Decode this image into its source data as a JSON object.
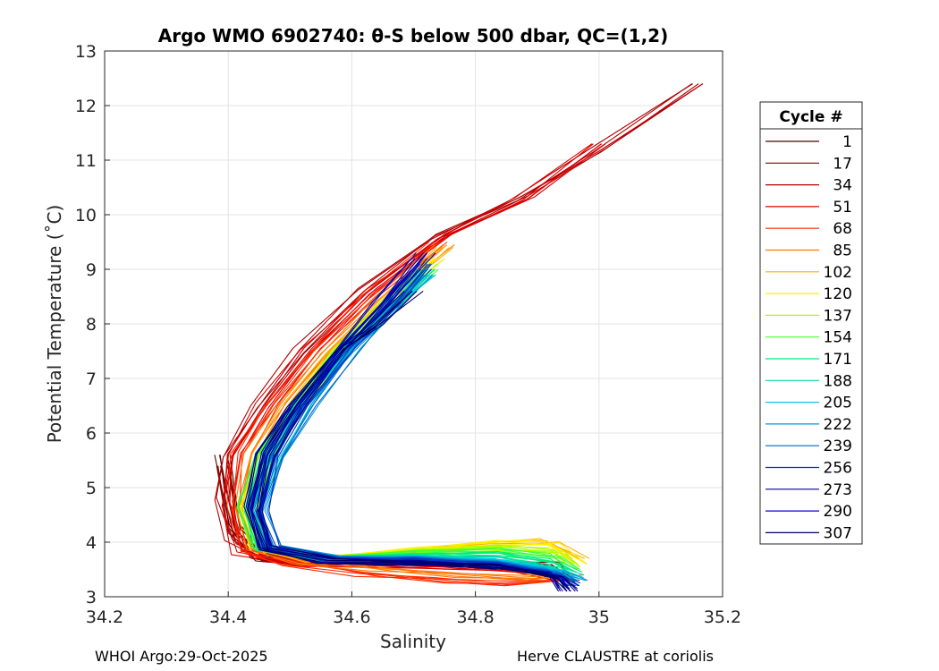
{
  "chart_data": {
    "type": "line",
    "title": "Argo WMO 6902740: θ-S below 500 dbar,  QC=(1,2)",
    "xlabel": "Salinity",
    "ylabel": "Potential Temperature (˚C)",
    "xlim": [
      34.2,
      35.2
    ],
    "ylim": [
      3,
      13
    ],
    "xticks": [
      "34.2",
      "34.4",
      "34.6",
      "34.8",
      "35",
      "35.2"
    ],
    "yticks": [
      "3",
      "4",
      "5",
      "6",
      "7",
      "8",
      "9",
      "10",
      "11",
      "12",
      "13"
    ],
    "grid": true,
    "legend_title": "Cycle #",
    "legend_position": "outside-right",
    "series": [
      {
        "name": "1",
        "color": "#550000",
        "x": [
          34.39,
          34.41,
          34.45,
          34.52,
          34.62,
          34.74,
          34.92,
          34.95
        ],
        "y": [
          5.6,
          4.3,
          3.75,
          3.62,
          3.66,
          3.62,
          3.6,
          3.2
        ]
      },
      {
        "name": "17",
        "color": "#8b0000",
        "x": [
          34.39,
          34.41,
          34.46,
          34.53,
          34.63,
          34.75,
          34.92,
          34.94
        ],
        "y": [
          5.4,
          4.2,
          3.7,
          3.62,
          3.66,
          3.65,
          3.6,
          3.4
        ]
      },
      {
        "name": "34",
        "color": "#b00000",
        "x": [
          35.16,
          35.0,
          34.87,
          34.74,
          34.62,
          34.52,
          34.45,
          34.4,
          34.39,
          34.41,
          34.46,
          34.55,
          34.64,
          34.76,
          34.9,
          34.96
        ],
        "y": [
          12.4,
          11.2,
          10.3,
          9.6,
          8.6,
          7.5,
          6.5,
          5.6,
          4.8,
          4.0,
          3.68,
          3.62,
          3.64,
          3.58,
          3.45,
          3.3
        ]
      },
      {
        "name": "51",
        "color": "#dd0000",
        "x": [
          35.0,
          34.88,
          34.75,
          34.63,
          34.53,
          34.46,
          34.41,
          34.4,
          34.42,
          34.5,
          34.62,
          34.76,
          34.88,
          34.94
        ],
        "y": [
          11.3,
          10.3,
          9.6,
          8.6,
          7.5,
          6.5,
          5.6,
          4.7,
          3.8,
          3.6,
          3.58,
          3.55,
          3.5,
          3.3
        ]
      },
      {
        "name": "68",
        "color": "#ff2a00",
        "x": [
          34.74,
          34.63,
          34.54,
          34.47,
          34.42,
          34.41,
          34.43,
          34.5,
          34.62,
          34.74,
          34.84,
          34.94
        ],
        "y": [
          9.5,
          8.5,
          7.5,
          6.5,
          5.6,
          4.6,
          3.85,
          3.62,
          3.4,
          3.3,
          3.25,
          3.3
        ]
      },
      {
        "name": "85",
        "color": "#ff7700",
        "x": [
          34.75,
          34.65,
          34.56,
          34.49,
          34.44,
          34.42,
          34.44,
          34.52,
          34.64,
          34.76,
          34.88,
          34.96
        ],
        "y": [
          9.45,
          8.5,
          7.5,
          6.5,
          5.6,
          4.6,
          3.9,
          3.65,
          3.5,
          3.4,
          3.35,
          3.4
        ]
      },
      {
        "name": "102",
        "color": "#ffb000",
        "x": [
          34.75,
          34.66,
          34.57,
          34.5,
          34.45,
          34.43,
          34.45,
          34.54,
          34.68,
          34.82,
          34.92,
          34.97
        ],
        "y": [
          9.4,
          8.5,
          7.5,
          6.5,
          5.6,
          4.6,
          3.9,
          3.68,
          3.8,
          3.95,
          4.02,
          3.7
        ]
      },
      {
        "name": "120",
        "color": "#ffee00",
        "x": [
          34.74,
          34.66,
          34.58,
          34.51,
          34.46,
          34.43,
          34.45,
          34.55,
          34.7,
          34.84,
          34.92,
          34.97
        ],
        "y": [
          9.2,
          8.4,
          7.5,
          6.5,
          5.6,
          4.6,
          3.9,
          3.7,
          3.85,
          3.98,
          4.0,
          3.6
        ]
      },
      {
        "name": "137",
        "color": "#aaff00",
        "x": [
          34.73,
          34.66,
          34.58,
          34.51,
          34.46,
          34.43,
          34.45,
          34.56,
          34.7,
          34.84,
          34.93,
          34.96
        ],
        "y": [
          9.1,
          8.4,
          7.5,
          6.5,
          5.6,
          4.6,
          3.9,
          3.7,
          3.82,
          3.9,
          3.85,
          3.55
        ]
      },
      {
        "name": "154",
        "color": "#44ff33",
        "x": [
          34.73,
          34.66,
          34.58,
          34.51,
          34.46,
          34.43,
          34.45,
          34.56,
          34.7,
          34.84,
          34.93,
          34.96
        ],
        "y": [
          9.0,
          8.3,
          7.5,
          6.5,
          5.6,
          4.6,
          3.9,
          3.7,
          3.8,
          3.85,
          3.75,
          3.5
        ]
      },
      {
        "name": "171",
        "color": "#00ee77",
        "x": [
          34.72,
          34.66,
          34.58,
          34.51,
          34.46,
          34.43,
          34.45,
          34.56,
          34.7,
          34.84,
          34.93,
          34.96
        ],
        "y": [
          9.0,
          8.3,
          7.5,
          6.5,
          5.6,
          4.6,
          3.9,
          3.7,
          3.75,
          3.78,
          3.65,
          3.45
        ]
      },
      {
        "name": "188",
        "color": "#00ddaa",
        "x": [
          34.72,
          34.66,
          34.59,
          34.52,
          34.47,
          34.44,
          34.46,
          34.57,
          34.7,
          34.84,
          34.93,
          34.96
        ],
        "y": [
          8.9,
          8.3,
          7.5,
          6.5,
          5.6,
          4.6,
          3.9,
          3.7,
          3.72,
          3.7,
          3.55,
          3.4
        ]
      },
      {
        "name": "205",
        "color": "#00c8e6",
        "x": [
          34.72,
          34.66,
          34.59,
          34.52,
          34.47,
          34.44,
          34.46,
          34.57,
          34.7,
          34.84,
          34.93,
          34.96
        ],
        "y": [
          8.9,
          8.3,
          7.5,
          6.5,
          5.6,
          4.6,
          3.9,
          3.7,
          3.7,
          3.65,
          3.5,
          3.35
        ]
      },
      {
        "name": "222",
        "color": "#0099dd",
        "x": [
          34.72,
          34.67,
          34.6,
          34.53,
          34.48,
          34.45,
          34.47,
          34.57,
          34.7,
          34.84,
          34.93,
          34.97
        ],
        "y": [
          8.9,
          8.3,
          7.5,
          6.5,
          5.6,
          4.6,
          3.9,
          3.7,
          3.7,
          3.62,
          3.48,
          3.3
        ]
      },
      {
        "name": "239",
        "color": "#0066cc",
        "x": [
          34.72,
          34.66,
          34.6,
          34.53,
          34.48,
          34.45,
          34.47,
          34.57,
          34.7,
          34.84,
          34.93,
          34.96
        ],
        "y": [
          9.0,
          8.3,
          7.5,
          6.5,
          5.6,
          4.6,
          3.9,
          3.68,
          3.68,
          3.6,
          3.45,
          3.25
        ]
      },
      {
        "name": "256",
        "color": "#0033bb",
        "x": [
          34.72,
          34.66,
          34.59,
          34.52,
          34.47,
          34.45,
          34.47,
          34.57,
          34.7,
          34.84,
          34.93,
          34.96
        ],
        "y": [
          9.1,
          8.3,
          7.5,
          6.5,
          5.6,
          4.6,
          3.9,
          3.68,
          3.66,
          3.58,
          3.42,
          3.2
        ]
      },
      {
        "name": "273",
        "color": "#000099",
        "x": [
          34.71,
          34.65,
          34.58,
          34.51,
          34.46,
          34.44,
          34.46,
          34.56,
          34.7,
          34.84,
          34.93,
          34.95
        ],
        "y": [
          9.2,
          8.4,
          7.5,
          6.5,
          5.6,
          4.6,
          3.9,
          3.66,
          3.62,
          3.55,
          3.4,
          3.1
        ]
      },
      {
        "name": "290",
        "color": "#0000cc",
        "x": [
          34.72,
          34.65,
          34.58,
          34.51,
          34.46,
          34.44,
          34.46,
          34.56,
          34.7,
          34.84,
          34.93,
          34.95
        ],
        "y": [
          9.3,
          8.4,
          7.5,
          6.5,
          5.6,
          4.6,
          3.9,
          3.66,
          3.6,
          3.55,
          3.38,
          3.15
        ]
      },
      {
        "name": "307",
        "color": "#000066",
        "x": [
          34.7,
          34.64,
          34.58,
          34.51,
          34.46,
          34.44,
          34.46,
          34.56,
          34.7,
          34.84,
          34.93,
          34.95
        ],
        "y": [
          8.6,
          8.0,
          7.5,
          6.5,
          5.6,
          4.6,
          3.9,
          3.66,
          3.6,
          3.55,
          3.38,
          3.1
        ]
      }
    ]
  },
  "footer": {
    "left": "WHOI Argo:29-Oct-2025",
    "right": "Herve CLAUSTRE at coriolis"
  }
}
